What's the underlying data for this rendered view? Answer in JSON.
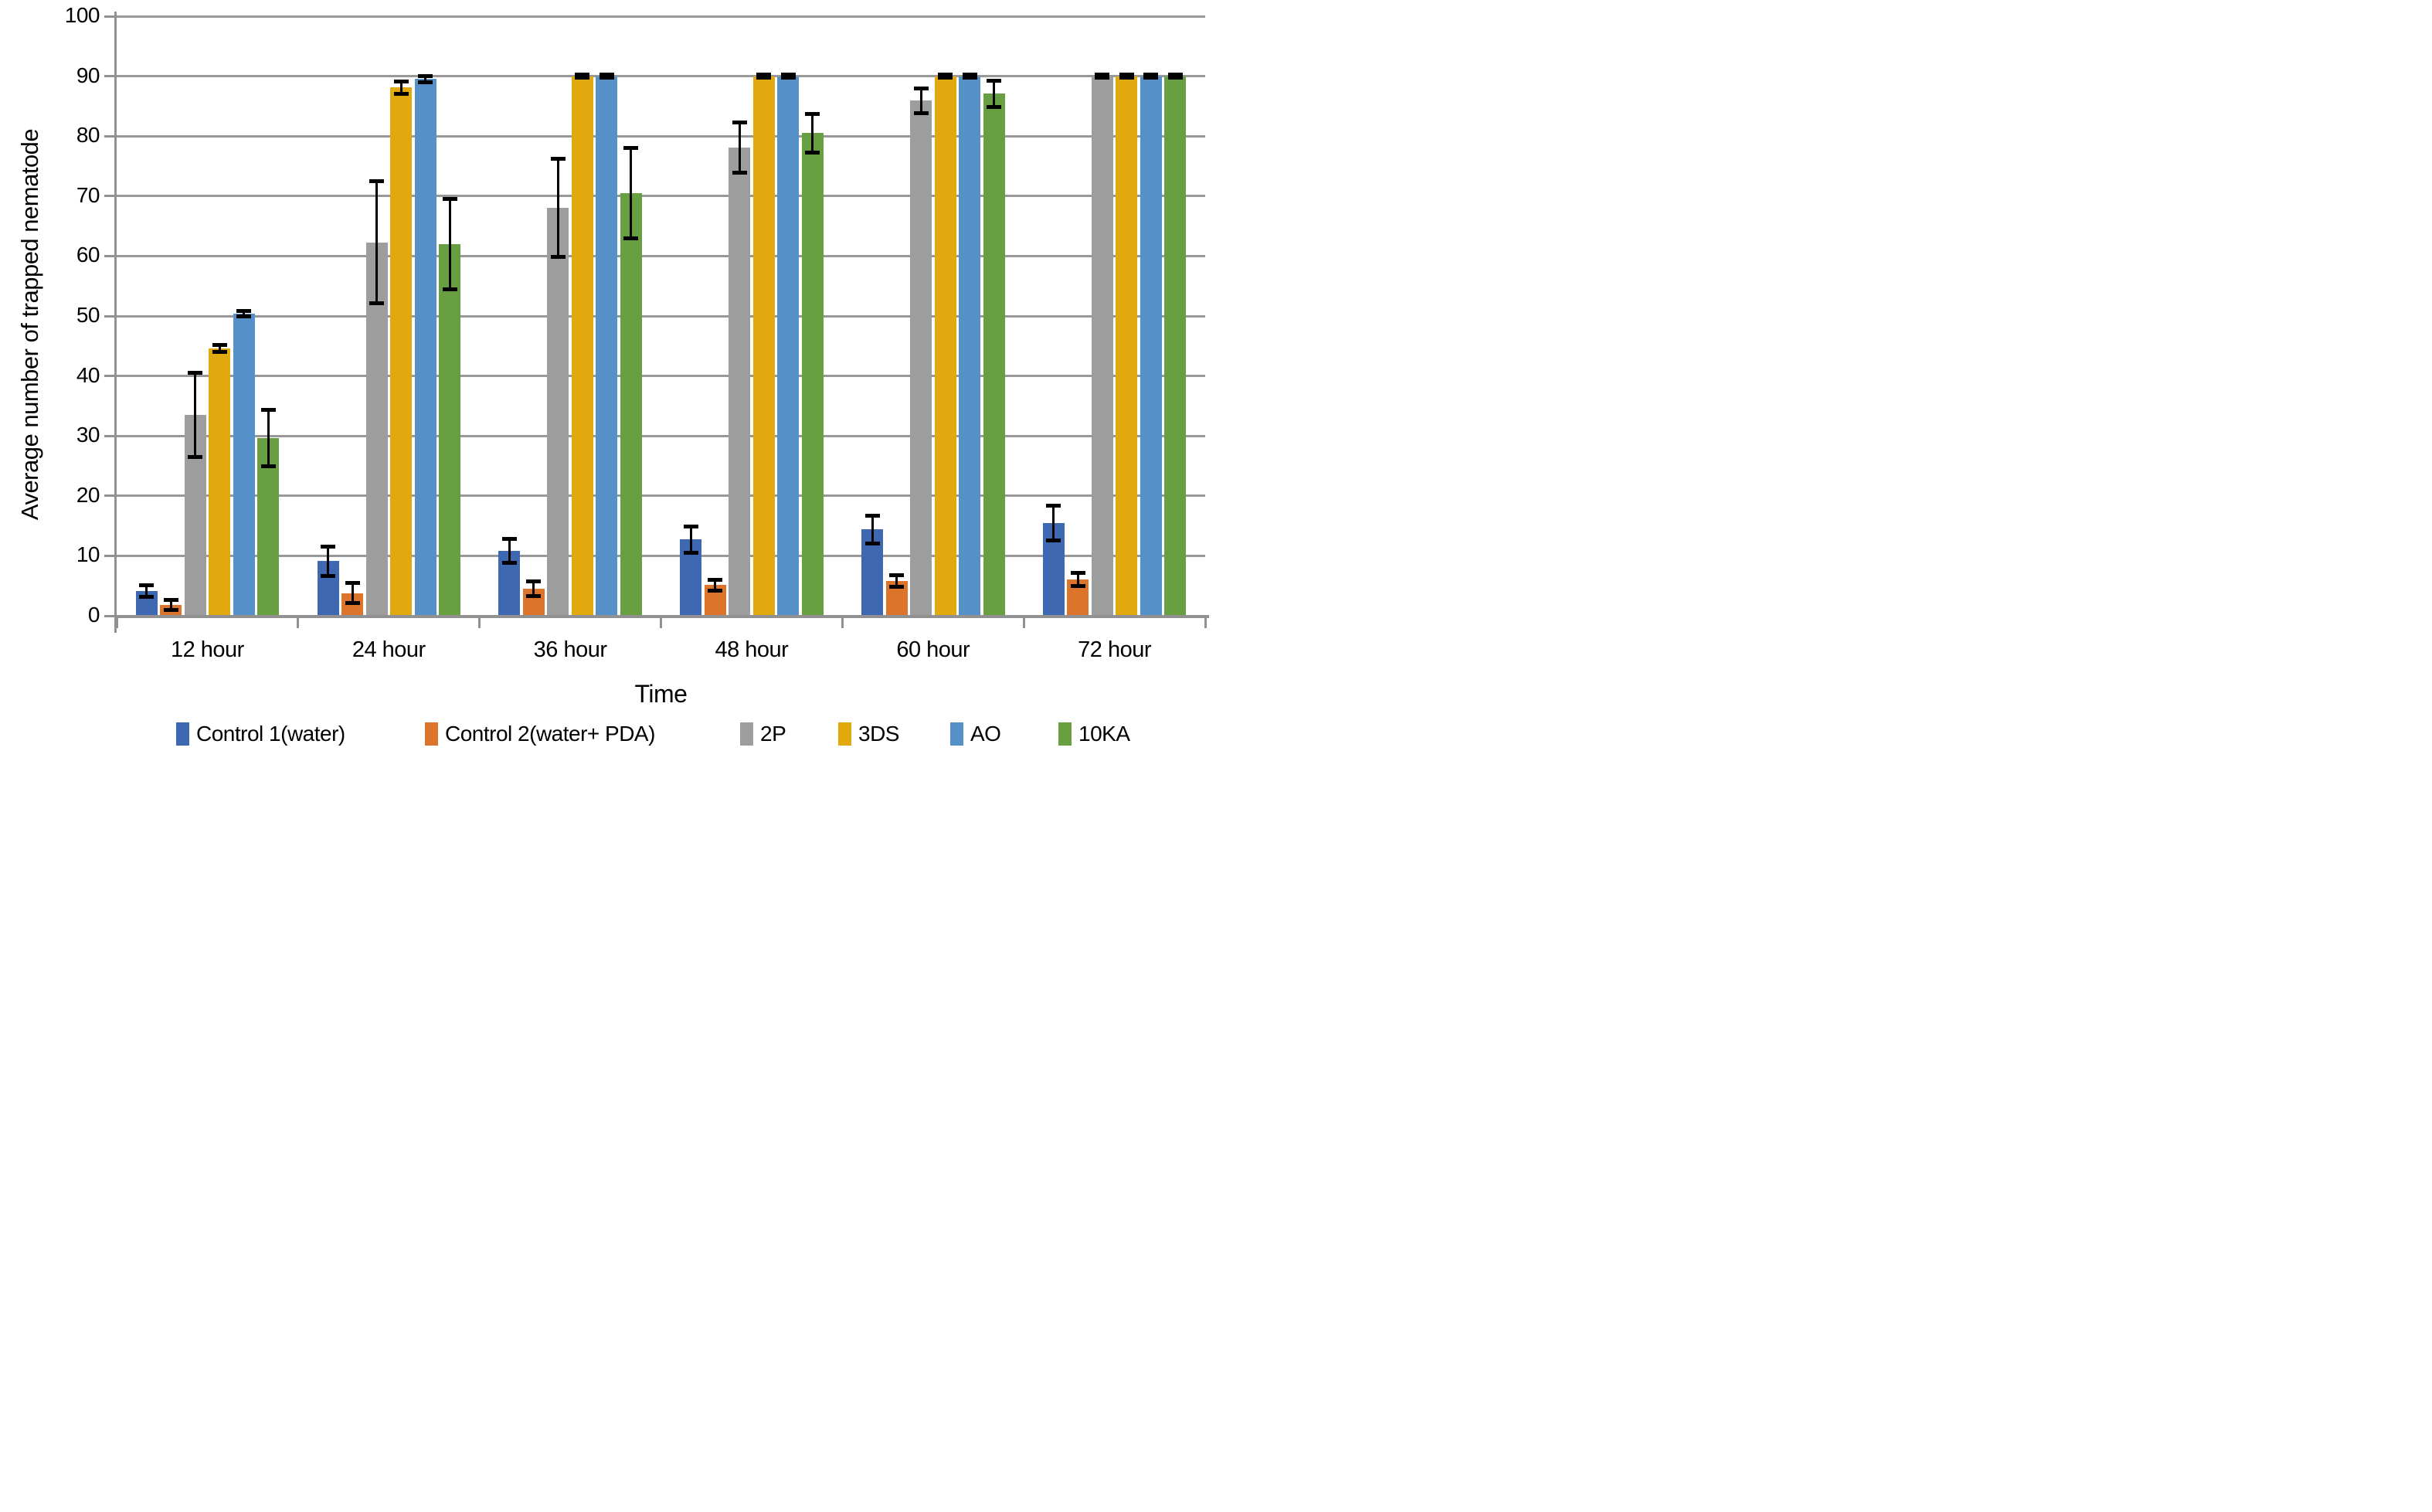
{
  "chart_data": {
    "type": "bar",
    "title": "",
    "xlabel": "Time",
    "ylabel": "Average number of trapped nematode",
    "ylim": [
      0,
      100
    ],
    "ytick_step": 10,
    "ytick_labels": [
      "0",
      "10",
      "20",
      "30",
      "40",
      "50",
      "60",
      "70",
      "80",
      "90",
      "100"
    ],
    "grid": true,
    "legend_position": "bottom",
    "error_bars": true,
    "categories": [
      "12 hour",
      "24 hour",
      "36 hour",
      "48 hour",
      "60 hour",
      "72 hour"
    ],
    "series": [
      {
        "name": "Control 1(water)",
        "color": "#3E68B2",
        "values": [
          4.1,
          9.1,
          10.8,
          12.7,
          14.4,
          15.5
        ],
        "errors": [
          1.0,
          2.4,
          2.0,
          2.2,
          2.3,
          2.9
        ]
      },
      {
        "name": "Control 2(water+ PDA)",
        "color": "#DC752B",
        "values": [
          1.8,
          3.8,
          4.5,
          5.1,
          5.8,
          6.1
        ],
        "errors": [
          0.8,
          1.7,
          1.2,
          0.9,
          1.0,
          1.1
        ]
      },
      {
        "name": "2P",
        "color": "#9D9D9D",
        "values": [
          33.5,
          62.3,
          68.0,
          78.1,
          85.9,
          90.0
        ],
        "errors": [
          7.0,
          10.2,
          8.2,
          4.2,
          2.1,
          0.3
        ]
      },
      {
        "name": "3DS",
        "color": "#E2A90F",
        "values": [
          44.6,
          88.1,
          90.0,
          90.0,
          90.0,
          90.0
        ],
        "errors": [
          0.6,
          1.0,
          0.3,
          0.3,
          0.3,
          0.3
        ]
      },
      {
        "name": "AO",
        "color": "#5590C8",
        "values": [
          50.4,
          89.5,
          90.0,
          90.0,
          90.0,
          90.0
        ],
        "errors": [
          0.5,
          0.5,
          0.3,
          0.3,
          0.3,
          0.3
        ]
      },
      {
        "name": "10KA",
        "color": "#689F41",
        "values": [
          29.6,
          62.0,
          70.5,
          80.5,
          87.1,
          90.0
        ],
        "errors": [
          4.7,
          7.5,
          7.5,
          3.2,
          2.2,
          0.3
        ]
      }
    ],
    "colors": {
      "gridline": "#989898",
      "axis": "#919191",
      "error_bar": "#000000",
      "text": "#000000",
      "background": "#ffffff"
    }
  }
}
